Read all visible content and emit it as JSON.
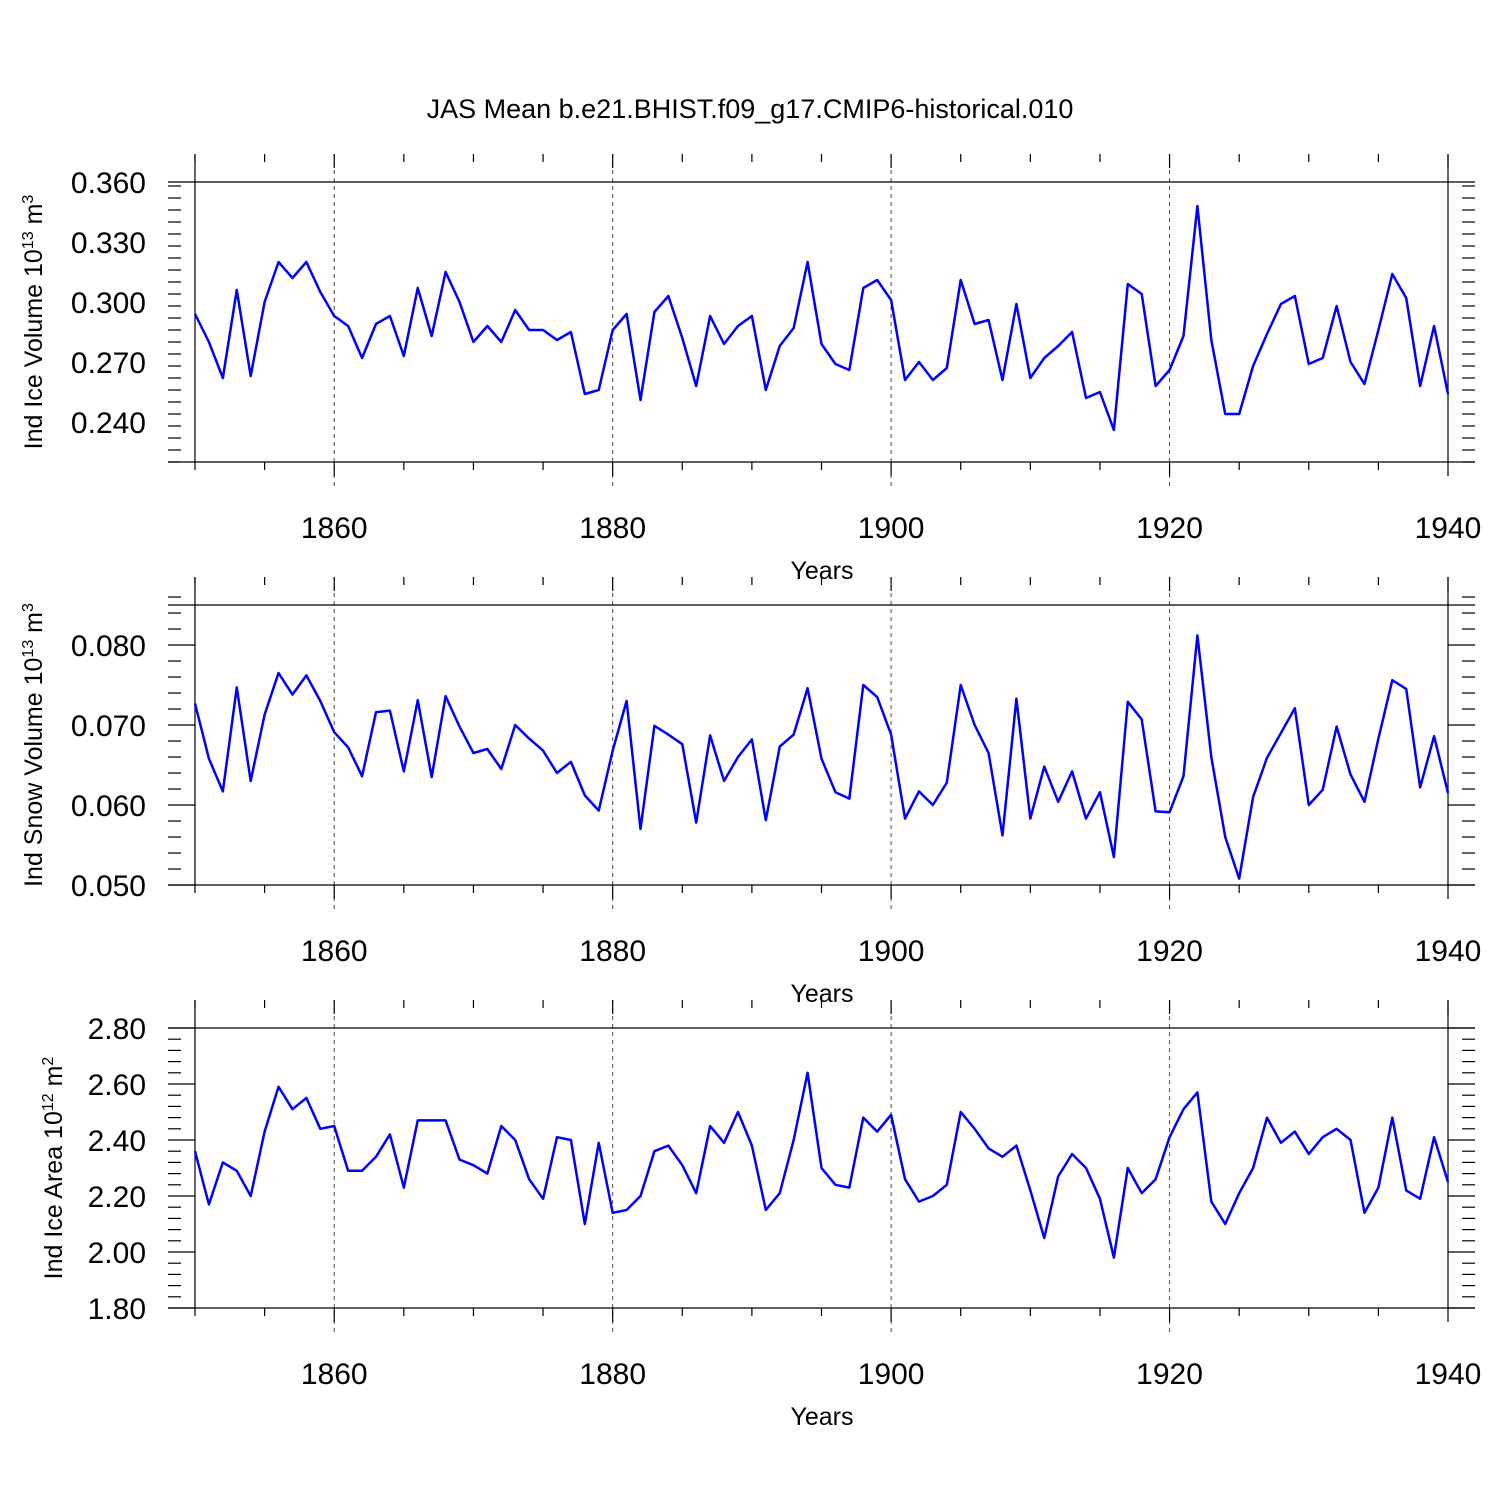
{
  "figure": {
    "title": "JAS Mean b.e21.BHIST.f09_g17.CMIP6-historical.010"
  },
  "colors": {
    "series": "#0000ff",
    "axes": "#000000"
  },
  "chart_data": [
    {
      "type": "line",
      "ylabel_main": "Ind Ice Volume 10",
      "ylabel_exp": "13",
      "ylabel_unit": " m",
      "ylabel_unit_exp": "3",
      "xlabel": "Years",
      "xlim": [
        1850,
        1940
      ],
      "ylim": [
        0.22,
        0.36
      ],
      "x_ticks": [
        1860,
        1880,
        1900,
        1920,
        1940
      ],
      "x_tick_labels": [
        "1860",
        "1880",
        "1900",
        "1920",
        "1940"
      ],
      "y_ticks": [
        0.24,
        0.27,
        0.3,
        0.33,
        0.36
      ],
      "y_tick_labels": [
        "0.240",
        "0.270",
        "0.300",
        "0.330",
        "0.360"
      ],
      "grid": "dashed vertical at 20-year ticks",
      "x_start": 1850,
      "values": [
        0.294,
        0.28,
        0.262,
        0.306,
        0.263,
        0.3,
        0.32,
        0.312,
        0.32,
        0.305,
        0.293,
        0.288,
        0.272,
        0.289,
        0.293,
        0.273,
        0.307,
        0.283,
        0.315,
        0.3,
        0.28,
        0.288,
        0.28,
        0.296,
        0.286,
        0.286,
        0.281,
        0.285,
        0.254,
        0.256,
        0.286,
        0.294,
        0.251,
        0.295,
        0.303,
        0.282,
        0.258,
        0.293,
        0.279,
        0.288,
        0.293,
        0.256,
        0.278,
        0.287,
        0.32,
        0.279,
        0.269,
        0.266,
        0.307,
        0.311,
        0.301,
        0.261,
        0.27,
        0.261,
        0.267,
        0.311,
        0.289,
        0.291,
        0.261,
        0.299,
        0.262,
        0.272,
        0.278,
        0.285,
        0.252,
        0.255,
        0.236,
        0.309,
        0.304,
        0.258,
        0.266,
        0.283,
        0.348,
        0.281,
        0.244,
        0.244,
        0.268,
        0.284,
        0.299,
        0.303,
        0.269,
        0.272,
        0.298,
        0.27,
        0.259,
        0.286,
        0.314,
        0.302,
        0.258,
        0.288,
        0.254
      ]
    },
    {
      "type": "line",
      "ylabel_main": "Ind Snow Volume 10",
      "ylabel_exp": "13",
      "ylabel_unit": " m",
      "ylabel_unit_exp": "3",
      "xlabel": "Years",
      "xlim": [
        1850,
        1940
      ],
      "ylim": [
        0.05,
        0.085
      ],
      "x_ticks": [
        1860,
        1880,
        1900,
        1920,
        1940
      ],
      "x_tick_labels": [
        "1860",
        "1880",
        "1900",
        "1920",
        "1940"
      ],
      "y_ticks": [
        0.05,
        0.06,
        0.07,
        0.08
      ],
      "y_tick_labels": [
        "0.050",
        "0.060",
        "0.070",
        "0.080"
      ],
      "grid": "dashed vertical at 20-year ticks",
      "x_start": 1850,
      "values": [
        0.0727,
        0.0658,
        0.0617,
        0.0747,
        0.063,
        0.0713,
        0.0765,
        0.0738,
        0.0762,
        0.073,
        0.0691,
        0.0672,
        0.0636,
        0.0716,
        0.0718,
        0.0642,
        0.0731,
        0.0635,
        0.0736,
        0.0698,
        0.0665,
        0.067,
        0.0645,
        0.07,
        0.0683,
        0.0668,
        0.064,
        0.0654,
        0.0612,
        0.0593,
        0.0668,
        0.073,
        0.057,
        0.0699,
        0.0688,
        0.0676,
        0.0578,
        0.0687,
        0.063,
        0.066,
        0.0682,
        0.0581,
        0.0673,
        0.0688,
        0.0746,
        0.0658,
        0.0616,
        0.0608,
        0.075,
        0.0735,
        0.0688,
        0.0583,
        0.0617,
        0.06,
        0.0628,
        0.075,
        0.07,
        0.0665,
        0.0562,
        0.0733,
        0.0583,
        0.0648,
        0.0604,
        0.0642,
        0.0583,
        0.0616,
        0.0535,
        0.0729,
        0.0707,
        0.0592,
        0.0591,
        0.0636,
        0.0812,
        0.066,
        0.056,
        0.0508,
        0.061,
        0.0659,
        0.069,
        0.0721,
        0.06,
        0.0619,
        0.0698,
        0.0638,
        0.0604,
        0.0683,
        0.0756,
        0.0745,
        0.0622,
        0.0686,
        0.0615
      ]
    },
    {
      "type": "line",
      "ylabel_main": "Ind Ice Area 10",
      "ylabel_exp": "12",
      "ylabel_unit": " m",
      "ylabel_unit_exp": "2",
      "xlabel": "Years",
      "xlim": [
        1850,
        1940
      ],
      "ylim": [
        1.8,
        2.8
      ],
      "x_ticks": [
        1860,
        1880,
        1900,
        1920,
        1940
      ],
      "x_tick_labels": [
        "1860",
        "1880",
        "1900",
        "1920",
        "1940"
      ],
      "y_ticks": [
        1.8,
        2.0,
        2.2,
        2.4,
        2.6,
        2.8
      ],
      "y_tick_labels": [
        "1.80",
        "2.00",
        "2.20",
        "2.40",
        "2.60",
        "2.80"
      ],
      "grid": "dashed vertical at 20-year ticks",
      "x_start": 1850,
      "values": [
        2.36,
        2.17,
        2.32,
        2.29,
        2.2,
        2.43,
        2.59,
        2.51,
        2.55,
        2.44,
        2.45,
        2.29,
        2.29,
        2.34,
        2.42,
        2.23,
        2.47,
        2.47,
        2.47,
        2.33,
        2.31,
        2.28,
        2.45,
        2.4,
        2.26,
        2.19,
        2.41,
        2.4,
        2.1,
        2.39,
        2.14,
        2.15,
        2.2,
        2.36,
        2.38,
        2.31,
        2.21,
        2.45,
        2.39,
        2.5,
        2.38,
        2.15,
        2.21,
        2.4,
        2.64,
        2.3,
        2.24,
        2.23,
        2.48,
        2.43,
        2.49,
        2.26,
        2.18,
        2.2,
        2.24,
        2.5,
        2.44,
        2.37,
        2.34,
        2.38,
        2.22,
        2.05,
        2.27,
        2.35,
        2.3,
        2.19,
        1.98,
        2.3,
        2.21,
        2.26,
        2.41,
        2.51,
        2.57,
        2.18,
        2.1,
        2.21,
        2.3,
        2.48,
        2.39,
        2.43,
        2.35,
        2.41,
        2.44,
        2.4,
        2.14,
        2.23,
        2.48,
        2.22,
        2.19,
        2.41,
        2.25
      ]
    }
  ]
}
